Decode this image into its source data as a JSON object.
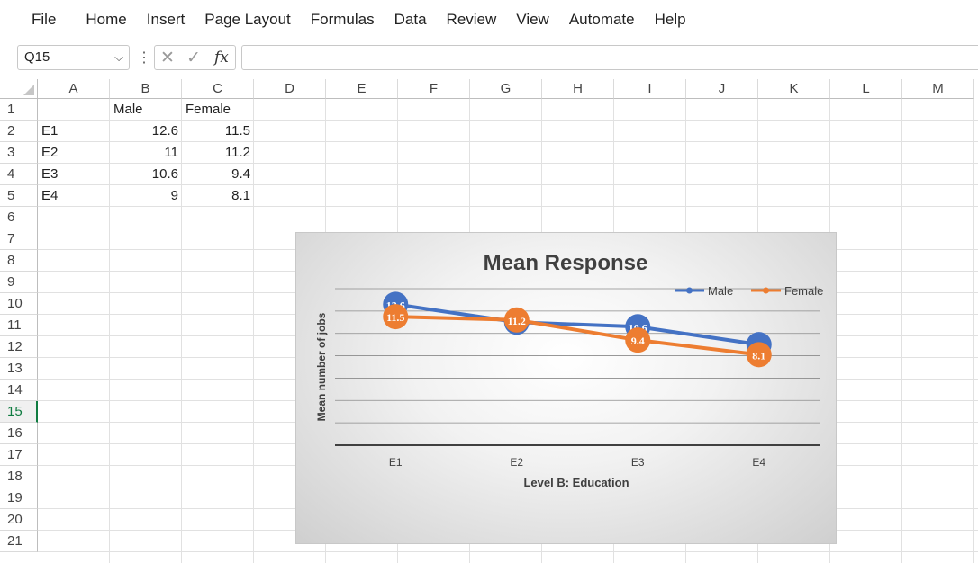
{
  "menu": [
    "File",
    "Home",
    "Insert",
    "Page Layout",
    "Formulas",
    "Data",
    "Review",
    "View",
    "Automate",
    "Help"
  ],
  "formula_bar": {
    "name_box": "Q15",
    "cancel_icon": "✕",
    "enter_icon": "✓",
    "fx_label": "fx",
    "formula": ""
  },
  "columns": [
    "A",
    "B",
    "C",
    "D",
    "E",
    "F",
    "G",
    "H",
    "I",
    "J",
    "K",
    "L",
    "M"
  ],
  "rows": [
    "1",
    "2",
    "3",
    "4",
    "5",
    "6",
    "7",
    "8",
    "9",
    "10",
    "11",
    "12",
    "13",
    "14",
    "15",
    "16",
    "17",
    "18",
    "19",
    "20",
    "21"
  ],
  "selected_row": "15",
  "cells": {
    "B1": "Male",
    "C1": "Female",
    "A2": "E1",
    "B2": "12.6",
    "C2": "11.5",
    "A3": "E2",
    "B3": "11",
    "C3": "11.2",
    "A4": "E3",
    "B4": "10.6",
    "C4": "9.4",
    "A5": "E4",
    "B5": "9",
    "C5": "8.1"
  },
  "chart_data": {
    "type": "line",
    "title": "Mean Response",
    "xlabel": "Level B: Education",
    "ylabel": "Mean number of jobs",
    "categories": [
      "E1",
      "E2",
      "E3",
      "E4"
    ],
    "series": [
      {
        "name": "Male",
        "values": [
          12.6,
          11,
          10.6,
          9
        ],
        "color": "#4472c4"
      },
      {
        "name": "Female",
        "values": [
          11.5,
          11.2,
          9.4,
          8.1
        ],
        "color": "#ed7d31"
      }
    ],
    "ylim": [
      0,
      14
    ],
    "grid": true,
    "legend": "top-right",
    "data_labels": true
  }
}
